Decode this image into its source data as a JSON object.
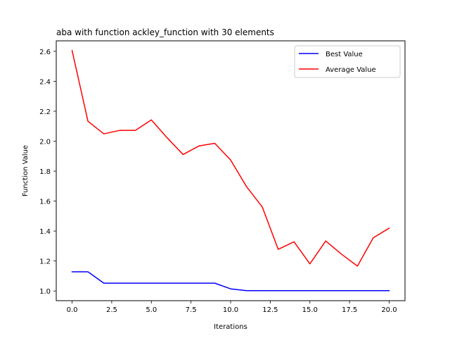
{
  "chart_data": {
    "type": "line",
    "title": "aba with function ackley_function with 30 elements",
    "xlabel": "Iterations",
    "ylabel": "Function Value",
    "xlim": [
      -1.0,
      21.0
    ],
    "ylim": [
      0.935,
      2.67
    ],
    "xticks": [
      0,
      2.5,
      5,
      7.5,
      10,
      12.5,
      15,
      17.5,
      20
    ],
    "xtick_labels": [
      "0.0",
      "2.5",
      "5.0",
      "7.5",
      "10.0",
      "12.5",
      "15.0",
      "17.5",
      "20.0"
    ],
    "yticks": [
      1.0,
      1.2,
      1.4,
      1.6,
      1.8,
      2.0,
      2.2,
      2.4,
      2.6
    ],
    "ytick_labels": [
      "1.0",
      "1.2",
      "1.4",
      "1.6",
      "1.8",
      "2.0",
      "2.2",
      "2.4",
      "2.6"
    ],
    "grid": false,
    "legend_position": "top-right",
    "x": [
      0,
      1,
      2,
      3,
      4,
      5,
      6,
      7,
      8,
      9,
      10,
      11,
      12,
      13,
      14,
      15,
      16,
      17,
      18,
      19,
      20
    ],
    "series": [
      {
        "name": "Best Value",
        "color": "#0000ff",
        "values": [
          1.128,
          1.128,
          1.052,
          1.052,
          1.052,
          1.052,
          1.052,
          1.052,
          1.052,
          1.052,
          1.014,
          1.002,
          1.002,
          1.002,
          1.002,
          1.002,
          1.002,
          1.002,
          1.002,
          1.002,
          1.002
        ]
      },
      {
        "name": "Average Value",
        "color": "#ff0000",
        "values": [
          2.605,
          2.133,
          2.049,
          2.072,
          2.072,
          2.142,
          2.022,
          1.911,
          1.968,
          1.986,
          1.874,
          1.697,
          1.56,
          1.278,
          1.328,
          1.181,
          1.334,
          1.245,
          1.166,
          1.355,
          1.419
        ]
      }
    ]
  }
}
